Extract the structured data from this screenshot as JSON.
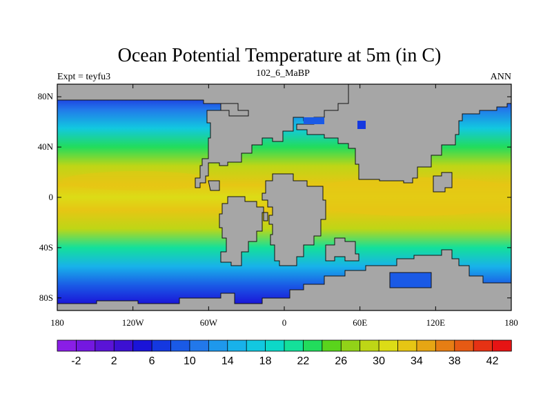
{
  "chart_data": {
    "type": "heatmap",
    "title": "Ocean Potential Temperature at 5m (in C)",
    "left_label": "Expt = teyfu3",
    "center_label": "102_6_MaBP",
    "right_label": "ANN",
    "x_ticks": [
      "180",
      "120W",
      "60W",
      "0",
      "60E",
      "120E",
      "180"
    ],
    "x_tick_values": [
      -180,
      -120,
      -60,
      0,
      60,
      120,
      180
    ],
    "y_ticks": [
      "80N",
      "40N",
      "0",
      "40S",
      "80S"
    ],
    "y_tick_values": [
      80,
      40,
      0,
      -40,
      -80
    ],
    "xlim": [
      -180,
      180
    ],
    "ylim": [
      -90,
      90
    ],
    "colorbar": {
      "levels": [
        -4,
        -2,
        0,
        2,
        4,
        6,
        8,
        10,
        12,
        14,
        16,
        18,
        20,
        22,
        24,
        26,
        28,
        30,
        32,
        34,
        36,
        38,
        40,
        42,
        44
      ],
      "labels": [
        "-2",
        "2",
        "6",
        "10",
        "14",
        "18",
        "22",
        "26",
        "30",
        "34",
        "38",
        "42"
      ],
      "label_values": [
        -2,
        2,
        6,
        10,
        14,
        18,
        22,
        26,
        30,
        34,
        38,
        42
      ],
      "colors": [
        "#8a1ee6",
        "#7418e0",
        "#5a14d6",
        "#3c10d2",
        "#1a14d8",
        "#1438e0",
        "#1a5ae6",
        "#2278ea",
        "#1e98ec",
        "#18b2ea",
        "#12c8e0",
        "#0cd8c8",
        "#14e09a",
        "#22dc5c",
        "#5ad41c",
        "#92d218",
        "#bed616",
        "#dcdc16",
        "#e6c614",
        "#e6a614",
        "#e67e14",
        "#e65a14",
        "#e63214",
        "#e61414"
      ]
    },
    "zonal_mean_sst_C": [
      {
        "lat": 85,
        "value": 4
      },
      {
        "lat": 70,
        "value": 11
      },
      {
        "lat": 55,
        "value": 17
      },
      {
        "lat": 40,
        "value": 23
      },
      {
        "lat": 25,
        "value": 29
      },
      {
        "lat": 10,
        "value": 32
      },
      {
        "lat": 0,
        "value": 31
      },
      {
        "lat": -10,
        "value": 32
      },
      {
        "lat": -25,
        "value": 28
      },
      {
        "lat": -40,
        "value": 21
      },
      {
        "lat": -55,
        "value": 14
      },
      {
        "lat": -70,
        "value": 9
      },
      {
        "lat": -85,
        "value": 5
      }
    ],
    "land_fill": "#a6a6a6"
  }
}
